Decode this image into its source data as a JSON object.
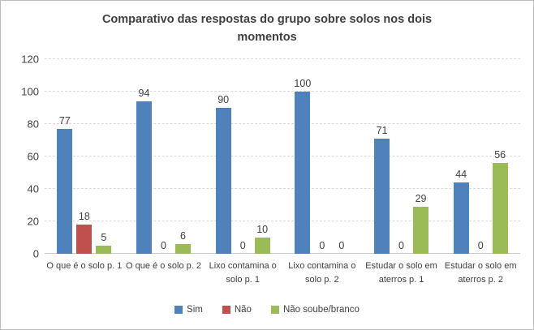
{
  "chart_data": {
    "type": "bar",
    "title": "Comparativo das respostas do grupo sobre solos nos dois momentos",
    "categories": [
      "O que é o solo p. 1",
      "O que é o solo p. 2",
      "Lixo contamina o solo p. 1",
      "Lixo contamina o solo p. 2",
      "Estudar o solo em aterros p. 1",
      "Estudar o solo em aterros p. 2"
    ],
    "series": [
      {
        "name": "Sim",
        "key": "sim",
        "color": "#4F81BD",
        "values": [
          77,
          94,
          90,
          100,
          71,
          44
        ]
      },
      {
        "name": "Não",
        "key": "nao",
        "color": "#C0504D",
        "values": [
          18,
          0,
          0,
          0,
          0,
          0
        ]
      },
      {
        "name": "Não soube/branco",
        "key": "nao-soube-branco",
        "color": "#9BBB59",
        "values": [
          5,
          6,
          10,
          0,
          29,
          56
        ]
      }
    ],
    "xlabel": "",
    "ylabel": "",
    "ylim": [
      0,
      120
    ],
    "yticks": [
      0,
      20,
      40,
      60,
      80,
      100,
      120
    ],
    "grid": true,
    "gridline_style": "dashed",
    "data_labels": true,
    "legend_position": "bottom",
    "colors": {
      "text": "#404040",
      "gridline": "#D9D9D9",
      "axis_line": "#C9C9C9",
      "frame_border": "#BDBDBD",
      "background": "#FFFFFF"
    }
  }
}
